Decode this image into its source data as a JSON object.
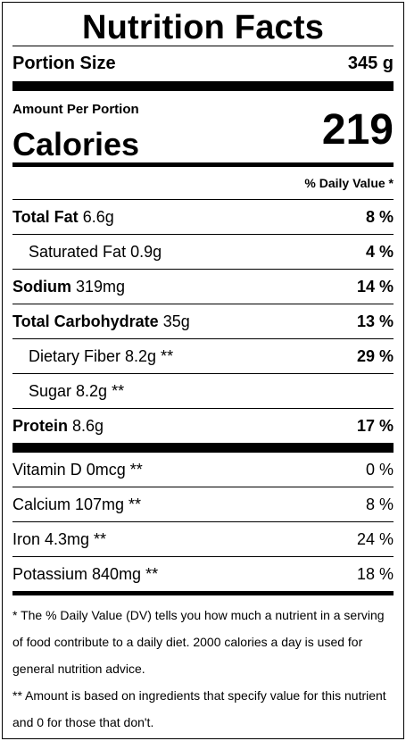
{
  "title": "Nutrition Facts",
  "portion": {
    "label": "Portion Size",
    "value": "345 g"
  },
  "amount_per_portion": "Amount Per Portion",
  "calories": {
    "label": "Calories",
    "value": "219"
  },
  "dv_header": "% Daily Value *",
  "nutrients": [
    {
      "name": "Total Fat",
      "amount": "6.6g",
      "pct": "8 %"
    },
    {
      "name": "Saturated Fat 0.9g",
      "pct": "4 %"
    },
    {
      "name": "Sodium",
      "amount": "319mg",
      "pct": "14 %"
    },
    {
      "name": "Total Carbohydrate",
      "amount": "35g",
      "pct": "13 %"
    },
    {
      "name": "Dietary Fiber 8.2g **",
      "pct": "29 %"
    },
    {
      "name": "Sugar 8.2g **",
      "pct": ""
    },
    {
      "name": "Protein",
      "amount": "8.6g",
      "pct": "17 %"
    }
  ],
  "vitamins": [
    {
      "name": "Vitamin D 0mcg **",
      "pct": "0 %"
    },
    {
      "name": "Calcium 107mg **",
      "pct": "8 %"
    },
    {
      "name": "Iron 4.3mg **",
      "pct": "24 %"
    },
    {
      "name": "Potassium 840mg **",
      "pct": "18 %"
    }
  ],
  "footnotes": [
    "* The % Daily Value (DV) tells you how much a nutrient in a serving of food contribute to a daily diet. 2000 calories a day is used for general nutrition advice.",
    "** Amount is based on ingredients that specify value for this nutrient and 0 for those that don't."
  ]
}
